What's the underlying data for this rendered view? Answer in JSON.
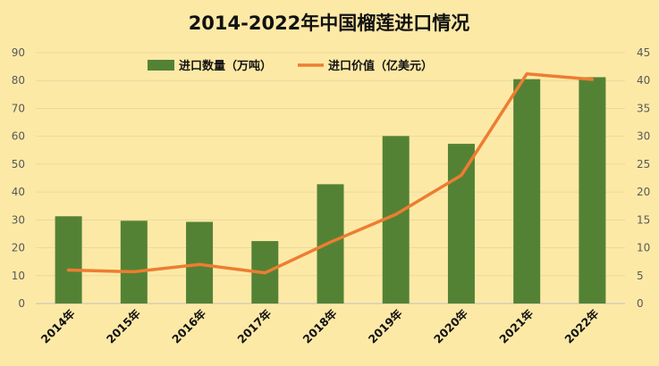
{
  "chart_data": {
    "type": "bar",
    "title": "2014-2022年中国榴莲进口情况",
    "categories": [
      "2014年",
      "2015年",
      "2016年",
      "2017年",
      "2018年",
      "2019年",
      "2020年",
      "2021年",
      "2022年"
    ],
    "series": [
      {
        "name": "进口数量（万吨）",
        "type": "bar",
        "axis": "left",
        "color": "#548235",
        "values": [
          31.3,
          29.7,
          29.3,
          22.4,
          42.8,
          60.1,
          57.3,
          80.5,
          81.2
        ]
      },
      {
        "name": "进口价值（亿美元）",
        "type": "line",
        "axis": "right",
        "color": "#ed7d31",
        "values": [
          6.0,
          5.7,
          7.0,
          5.5,
          11.0,
          16.0,
          23.0,
          41.2,
          40.2
        ]
      }
    ],
    "ylim_left": [
      0,
      90
    ],
    "yticks_left": [
      0,
      10,
      20,
      30,
      40,
      50,
      60,
      70,
      80,
      90
    ],
    "ylim_right": [
      0,
      45
    ],
    "yticks_right": [
      0,
      5,
      10,
      15,
      20,
      25,
      30,
      35,
      40,
      45
    ],
    "grid": true,
    "legend_position": "top"
  }
}
